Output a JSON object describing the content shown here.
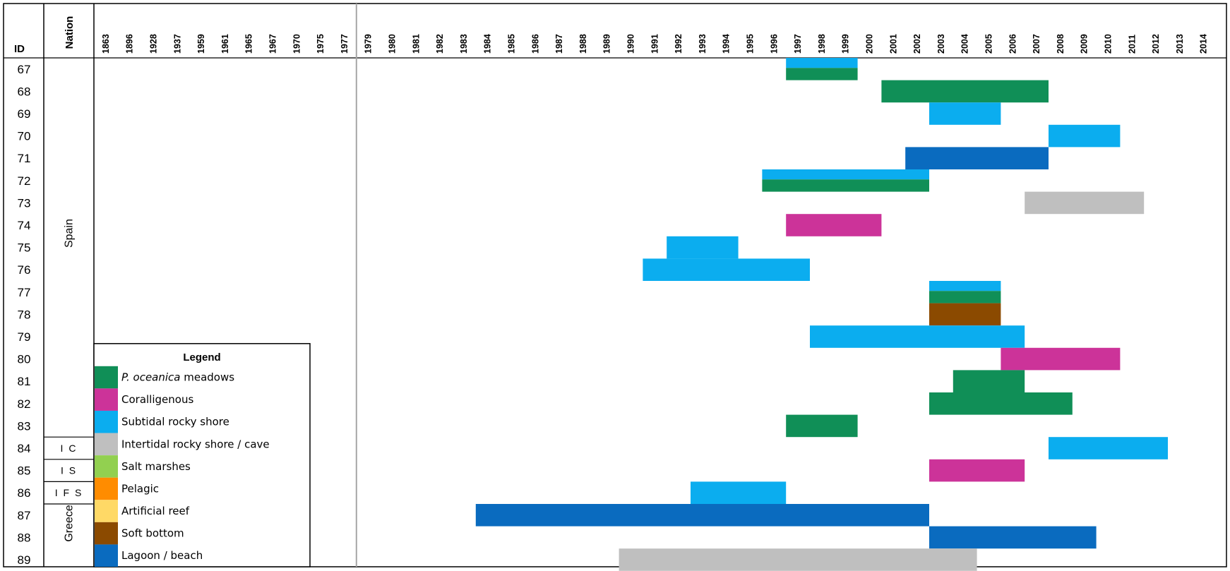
{
  "chart_data": {
    "type": "timeline",
    "headers": {
      "id": "ID",
      "nation": "Nation"
    },
    "years": [
      "1863",
      "1896",
      "1928",
      "1937",
      "1959",
      "1961",
      "1965",
      "1967",
      "1970",
      "1975",
      "1977",
      "1979",
      "1980",
      "1981",
      "1982",
      "1983",
      "1984",
      "1985",
      "1986",
      "1987",
      "1988",
      "1989",
      "1990",
      "1991",
      "1992",
      "1993",
      "1994",
      "1995",
      "1996",
      "1997",
      "1998",
      "1999",
      "2000",
      "2001",
      "2002",
      "2003",
      "2004",
      "2005",
      "2006",
      "2007",
      "2008",
      "2009",
      "2010",
      "2011",
      "2012",
      "2013",
      "2014"
    ],
    "ids": [
      "67",
      "68",
      "69",
      "70",
      "71",
      "72",
      "73",
      "74",
      "75",
      "76",
      "77",
      "78",
      "79",
      "80",
      "81",
      "82",
      "83",
      "84",
      "85",
      "86",
      "87",
      "88",
      "89"
    ],
    "nations": [
      {
        "label": "Spain",
        "from": "67",
        "to": "83",
        "rotated": true
      },
      {
        "label": "I C",
        "from": "84",
        "to": "84",
        "rotated": false
      },
      {
        "label": "I S",
        "from": "85",
        "to": "85",
        "rotated": false
      },
      {
        "label": "I F S",
        "from": "86",
        "to": "86",
        "rotated": false
      },
      {
        "label": "Greece",
        "from": "87",
        "to": "89",
        "rotated": true
      }
    ],
    "habitats": [
      {
        "key": "posidonia",
        "label_italic": "P. oceanica",
        "label": " meadows",
        "color": "#108f57"
      },
      {
        "key": "coralligenous",
        "label_italic": "",
        "label": "Coralligenous",
        "color": "#cc3399"
      },
      {
        "key": "subtidal",
        "label_italic": "",
        "label": "Subtidal rocky shore",
        "color": "#0badef"
      },
      {
        "key": "intertidal",
        "label_italic": "",
        "label": "Intertidal rocky shore / cave",
        "color": "#bfbfbf"
      },
      {
        "key": "saltmarsh",
        "label_italic": "",
        "label": "Salt marshes",
        "color": "#92d050"
      },
      {
        "key": "pelagic",
        "label_italic": "",
        "label": "Pelagic",
        "color": "#ff8c00"
      },
      {
        "key": "artificial",
        "label_italic": "",
        "label": "Artificial reef",
        "color": "#ffd966"
      },
      {
        "key": "softbottom",
        "label_italic": "",
        "label": "Soft bottom",
        "color": "#8b4a00"
      },
      {
        "key": "lagoon",
        "label_italic": "",
        "label": "Lagoon / beach",
        "color": "#0a6bbf"
      }
    ],
    "legend_title": "Legend",
    "bars": [
      {
        "id": "67",
        "habitat": "subtidal",
        "start": "1997",
        "end": "1999",
        "part": "top"
      },
      {
        "id": "67",
        "habitat": "posidonia",
        "start": "1997",
        "end": "1999",
        "part": "bottom"
      },
      {
        "id": "68",
        "habitat": "posidonia",
        "start": "2001",
        "end": "2007",
        "part": "full"
      },
      {
        "id": "69",
        "habitat": "subtidal",
        "start": "2003",
        "end": "2005",
        "part": "full"
      },
      {
        "id": "70",
        "habitat": "subtidal",
        "start": "2008",
        "end": "2010",
        "part": "full"
      },
      {
        "id": "71",
        "habitat": "lagoon",
        "start": "2002",
        "end": "2007",
        "part": "full"
      },
      {
        "id": "72",
        "habitat": "subtidal",
        "start": "1996",
        "end": "2002",
        "part": "top"
      },
      {
        "id": "72",
        "habitat": "posidonia",
        "start": "1996",
        "end": "2002",
        "part": "bottom"
      },
      {
        "id": "73",
        "habitat": "intertidal",
        "start": "2007",
        "end": "2011",
        "part": "full"
      },
      {
        "id": "74",
        "habitat": "coralligenous",
        "start": "1997",
        "end": "2000",
        "part": "full"
      },
      {
        "id": "75",
        "habitat": "subtidal",
        "start": "1992",
        "end": "1994",
        "part": "full"
      },
      {
        "id": "76",
        "habitat": "subtidal",
        "start": "1991",
        "end": "1997",
        "part": "full"
      },
      {
        "id": "77",
        "habitat": "subtidal",
        "start": "2003",
        "end": "2005",
        "part": "top"
      },
      {
        "id": "77",
        "habitat": "posidonia",
        "start": "2003",
        "end": "2005",
        "part": "bottom"
      },
      {
        "id": "78",
        "habitat": "softbottom",
        "start": "2003",
        "end": "2005",
        "part": "full"
      },
      {
        "id": "79",
        "habitat": "subtidal",
        "start": "1998",
        "end": "2006",
        "part": "full"
      },
      {
        "id": "80",
        "habitat": "coralligenous",
        "start": "2006",
        "end": "2010",
        "part": "full"
      },
      {
        "id": "81",
        "habitat": "posidonia",
        "start": "2004",
        "end": "2006",
        "part": "full"
      },
      {
        "id": "82",
        "habitat": "posidonia",
        "start": "2003",
        "end": "2008",
        "part": "full"
      },
      {
        "id": "83",
        "habitat": "posidonia",
        "start": "1997",
        "end": "1999",
        "part": "full"
      },
      {
        "id": "84",
        "habitat": "subtidal",
        "start": "2008",
        "end": "2012",
        "part": "full"
      },
      {
        "id": "85",
        "habitat": "coralligenous",
        "start": "2003",
        "end": "2006",
        "part": "full"
      },
      {
        "id": "86",
        "habitat": "subtidal",
        "start": "1993",
        "end": "1996",
        "part": "full"
      },
      {
        "id": "87",
        "habitat": "lagoon",
        "start": "1984",
        "end": "2002",
        "part": "full"
      },
      {
        "id": "88",
        "habitat": "lagoon",
        "start": "2003",
        "end": "2009",
        "part": "full"
      },
      {
        "id": "89",
        "habitat": "intertidal",
        "start": "1990",
        "end": "2004",
        "part": "full"
      }
    ]
  }
}
